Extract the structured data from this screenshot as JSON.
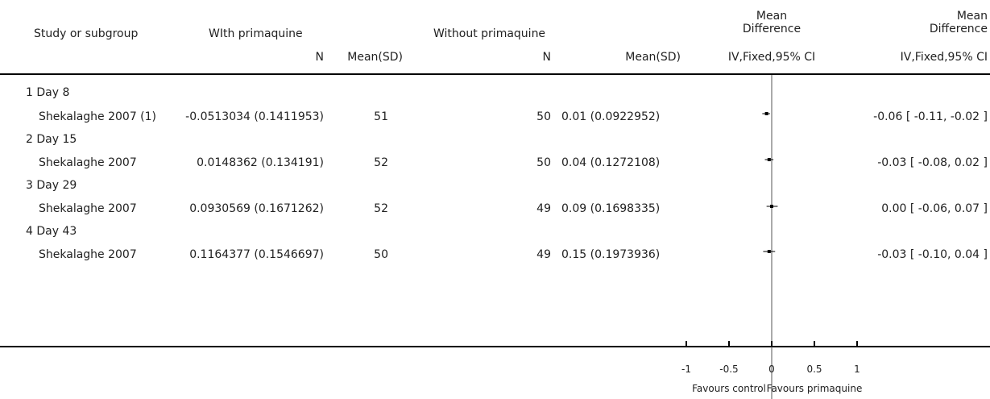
{
  "header": {
    "study_col": "Study or subgroup",
    "group1": "WIth primaquine",
    "group2": "Without primaquine",
    "md_col_1a": "Mean",
    "md_col_1b": "Difference",
    "md_col_2a": "Mean",
    "md_col_2b": "Difference",
    "n1": "N",
    "mean1": "Mean(SD)",
    "n2": "N",
    "mean2": "Mean(SD)",
    "method1": "IV,Fixed,95% CI",
    "method2": "IV,Fixed,95% CI"
  },
  "subgroups": [
    {
      "label": "1 Day 8",
      "study": "Shekalaghe 2007 (1)",
      "g1_mean_sd": "-0.0513034 (0.1411953)",
      "g1_n": "51",
      "g2_n": "50",
      "g2_mean_sd": "0.01 (0.0922952)",
      "md_text": "-0.06 [ -0.11, -0.02 ]"
    },
    {
      "label": "2 Day 15",
      "study": "Shekalaghe 2007",
      "g1_mean_sd": "0.0148362 (0.134191)",
      "g1_n": "52",
      "g2_n": "50",
      "g2_mean_sd": "0.04 (0.1272108)",
      "md_text": "-0.03 [ -0.08, 0.02 ]"
    },
    {
      "label": "3 Day 29",
      "study": "Shekalaghe 2007",
      "g1_mean_sd": "0.0930569 (0.1671262)",
      "g1_n": "52",
      "g2_n": "49",
      "g2_mean_sd": "0.09 (0.1698335)",
      "md_text": "0.00 [ -0.06, 0.07 ]"
    },
    {
      "label": "4 Day 43",
      "study": "Shekalaghe 2007",
      "g1_mean_sd": "0.1164377 (0.1546697)",
      "g1_n": "50",
      "g2_n": "49",
      "g2_mean_sd": "0.15 (0.1973936)",
      "md_text": "-0.03 [ -0.10, 0.04 ]"
    }
  ],
  "chart_data": {
    "type": "forest",
    "x_range": [
      -1,
      1
    ],
    "ticks": [
      "-1",
      "-0.5",
      "0",
      "0.5",
      "1"
    ],
    "tick_values": [
      -1,
      -0.5,
      0,
      0.5,
      1
    ],
    "favours_left": "Favours control",
    "favours_right": "Favours primaquine",
    "points": [
      {
        "md": -0.06,
        "lo": -0.11,
        "hi": -0.02
      },
      {
        "md": -0.03,
        "lo": -0.08,
        "hi": 0.02
      },
      {
        "md": 0.0,
        "lo": -0.06,
        "hi": 0.07
      },
      {
        "md": -0.03,
        "lo": -0.1,
        "hi": 0.04
      }
    ],
    "colors": {
      "ink": "#000000"
    }
  }
}
